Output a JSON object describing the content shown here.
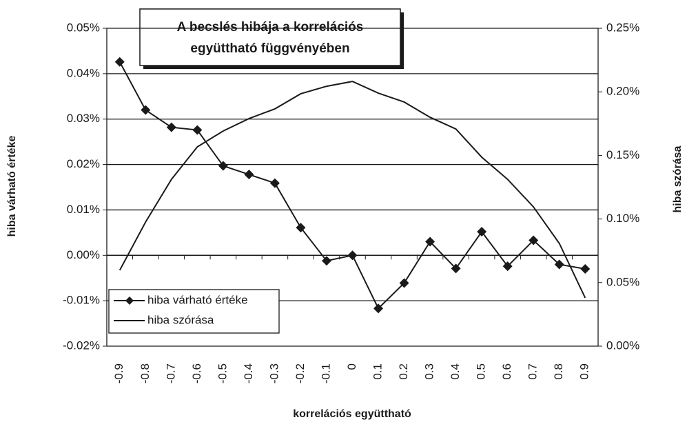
{
  "chart_data": {
    "type": "line",
    "title": [
      "A becslés hibája a korrelációs",
      "együttható függvényében"
    ],
    "x_label": "korrelációs együttható",
    "y_label": "hiba várható értéke",
    "y2_label": "hiba szórása",
    "categories": [
      "-0.9",
      "-0.8",
      "-0.7",
      "-0.6",
      "-0.5",
      "-0.4",
      "-0.3",
      "-0.2",
      "-0.1",
      "0",
      "0.1",
      "0.2",
      "0.3",
      "0.4",
      "0.5",
      "0.6",
      "0.7",
      "0.8",
      "0.9"
    ],
    "series": [
      {
        "name": "hiba várható értéke",
        "color": "#1a1a1a",
        "marker": "diamond",
        "values": [
          0.0426,
          0.032,
          0.0282,
          0.0276,
          0.0197,
          0.0178,
          0.0159,
          0.0061,
          -0.0012,
          0.0,
          -0.0117,
          -0.0061,
          0.003,
          -0.0029,
          0.0052,
          -0.0024,
          0.0033,
          -0.002,
          -0.003
        ]
      },
      {
        "name": "hiba szórása",
        "color": "#1a1a1a",
        "axis": "y2",
        "values": [
          0.0597,
          0.0976,
          0.1312,
          0.1567,
          0.1692,
          0.179,
          0.1866,
          0.1985,
          0.2044,
          0.2082,
          0.199,
          0.192,
          0.18,
          0.1708,
          0.1486,
          0.1312,
          0.1095,
          0.0808,
          0.038
        ]
      }
    ],
    "ylim": [
      -0.02,
      0.05
    ],
    "yticks": [
      {
        "value": -0.02,
        "label": "-0.02%"
      },
      {
        "value": -0.01,
        "label": "-0.01%"
      },
      {
        "value": 0,
        "label": "0.00%"
      },
      {
        "value": 0.01,
        "label": "0.01%"
      },
      {
        "value": 0.02,
        "label": "0.02%"
      },
      {
        "value": 0.03,
        "label": "0.03%"
      },
      {
        "value": 0.04,
        "label": "0.04%"
      },
      {
        "value": 0.05,
        "label": "0.05%"
      }
    ],
    "y2lim": [
      0,
      0.25
    ],
    "y2ticks": [
      {
        "value": 0,
        "label": "0.00%"
      },
      {
        "value": 0.05,
        "label": "0.05%"
      },
      {
        "value": 0.1,
        "label": "0.10%"
      },
      {
        "value": 0.15,
        "label": "0.15%"
      },
      {
        "value": 0.2,
        "label": "0.20%"
      },
      {
        "value": 0.25,
        "label": "0.25%"
      }
    ],
    "grid": true,
    "legend": "lower left"
  }
}
